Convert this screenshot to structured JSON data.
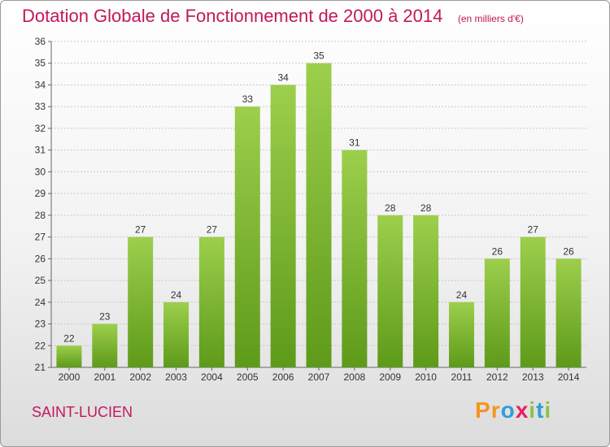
{
  "header": {
    "title": "Dotation Globale de Fonctionnement de 2000 à 2014",
    "unit": "(en milliers d'€)"
  },
  "chart_data": {
    "type": "bar",
    "title": "Dotation Globale de Fonctionnement de 2000 à 2014",
    "subtitle": "(en milliers d'€)",
    "categories": [
      "2000",
      "2001",
      "2002",
      "2003",
      "2004",
      "2005",
      "2006",
      "2007",
      "2008",
      "2009",
      "2010",
      "2011",
      "2012",
      "2013",
      "2014"
    ],
    "values": [
      22,
      23,
      27,
      24,
      27,
      33,
      34,
      35,
      31,
      28,
      28,
      24,
      26,
      27,
      26
    ],
    "xlabel": "",
    "ylabel": "",
    "ylim": [
      21,
      36
    ],
    "yticks": [
      21,
      22,
      23,
      24,
      25,
      26,
      27,
      28,
      29,
      30,
      31,
      32,
      33,
      34,
      35,
      36
    ],
    "grid": true,
    "colors": {
      "bar_top": "#9ccf4c",
      "bar_bottom": "#5e9a1a",
      "text": "#333333"
    }
  },
  "footer": {
    "commune": "SAINT-LUCIEN",
    "logo_letters": [
      "P",
      "r",
      "o",
      "x",
      "i",
      "t",
      "i"
    ],
    "logo_colors": [
      "#f7941d",
      "#f7941d",
      "#2e9fd8",
      "#e91e63",
      "#8bc34a",
      "#2e9fd8",
      "#8bc34a"
    ]
  }
}
